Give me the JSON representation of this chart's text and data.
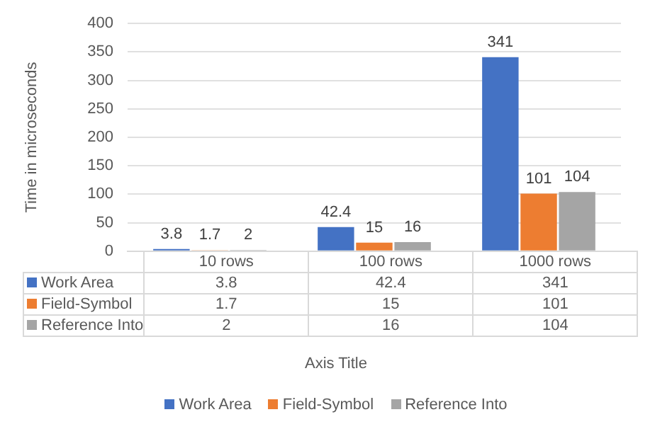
{
  "chart_data": {
    "type": "bar",
    "ylabel": "Time in microseconds",
    "categories": [
      "10 rows",
      "100 rows",
      "1000 rows"
    ],
    "series": [
      {
        "name": "Work Area",
        "color": "#4472c4",
        "values": [
          3.8,
          42.4,
          341
        ]
      },
      {
        "name": "Field-Symbol",
        "color": "#ed7d31",
        "values": [
          1.7,
          15,
          101
        ]
      },
      {
        "name": "Reference Into",
        "color": "#a5a5a5",
        "values": [
          2,
          16,
          104
        ]
      }
    ],
    "annotations": [
      "3.8",
      "42.4",
      "341",
      "1.7",
      "15",
      "101",
      "2",
      "16",
      "104",
      "Axis Title"
    ],
    "ylim": [
      0,
      400
    ],
    "yticks": [
      0,
      50,
      100,
      150,
      200,
      250,
      300,
      350,
      400
    ],
    "grid": "y",
    "legend": "bottom",
    "data_labels": true
  }
}
